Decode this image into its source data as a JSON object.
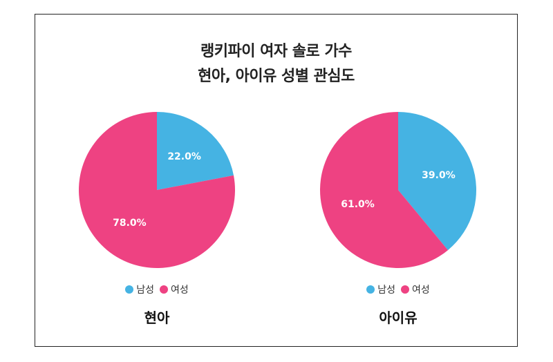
{
  "title_lines": [
    "랭키파이 여자 솔로 가수",
    "현아, 아이유 성별 관심도"
  ],
  "colors": {
    "male": "#45B3E3",
    "female": "#EE4282"
  },
  "chart_data": [
    {
      "type": "pie",
      "label": "현아",
      "slices": [
        {
          "name": "남성",
          "value": 22.0,
          "label": "22.0%"
        },
        {
          "name": "여성",
          "value": 78.0,
          "label": "78.0%"
        }
      ],
      "legend": [
        "남성",
        "여성"
      ],
      "legend_position": "bottom"
    },
    {
      "type": "pie",
      "label": "아이유",
      "slices": [
        {
          "name": "남성",
          "value": 39.0,
          "label": "39.0%"
        },
        {
          "name": "여성",
          "value": 61.0,
          "label": "61.0%"
        }
      ],
      "legend": [
        "남성",
        "여성"
      ],
      "legend_position": "bottom"
    }
  ]
}
